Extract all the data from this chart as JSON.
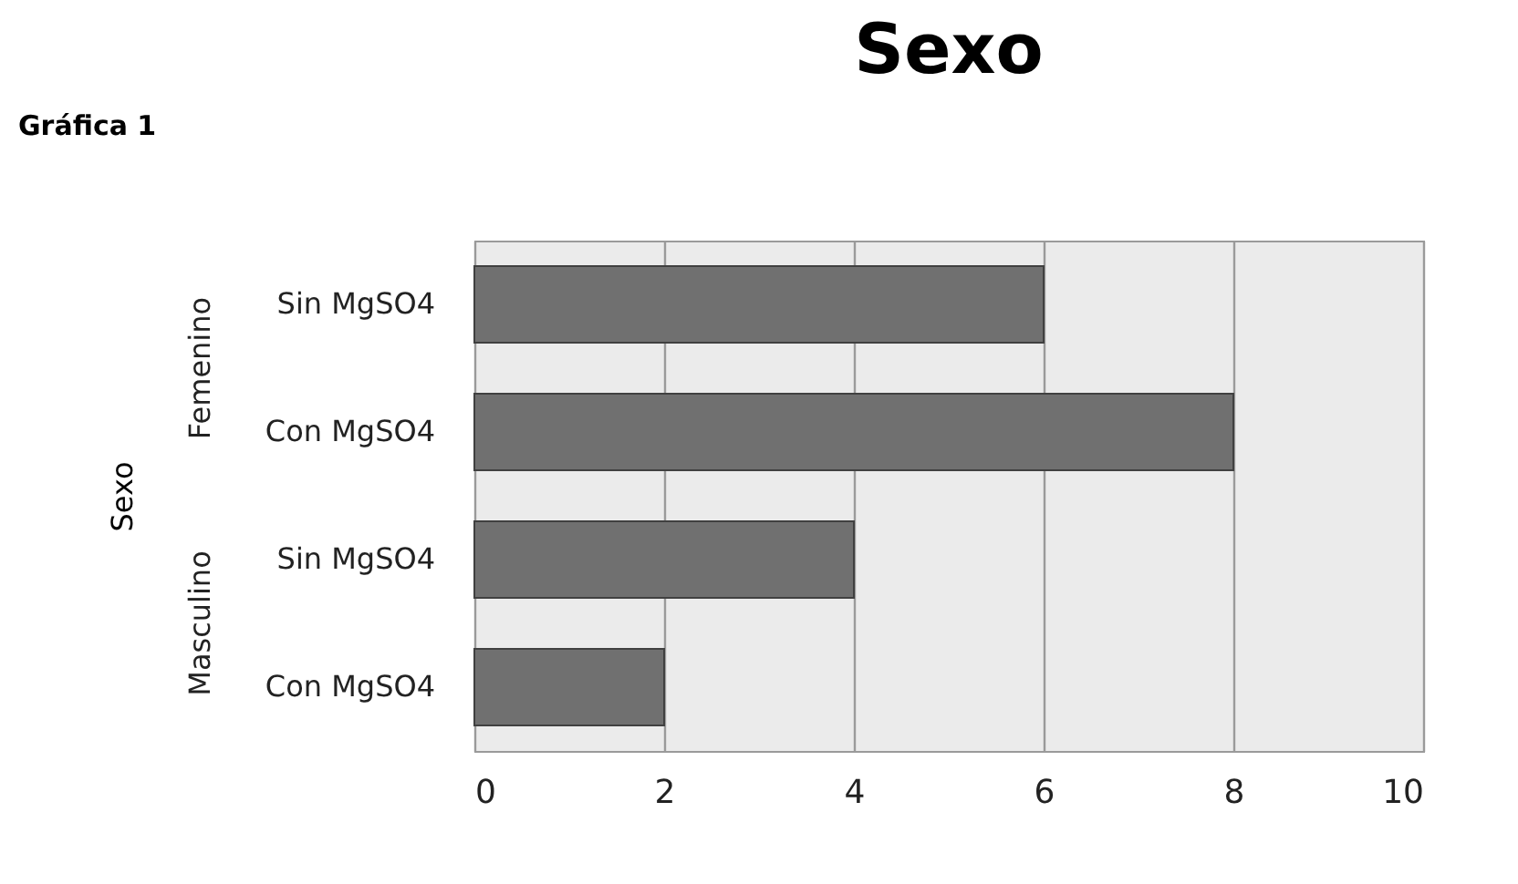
{
  "chart_data": {
    "type": "bar",
    "orientation": "horizontal",
    "title": "Sexo",
    "ylabel": "Sexo",
    "categories": [
      "Sin MgSO4",
      "Con MgSO4",
      "Sin MgSO4",
      "Con MgSO4"
    ],
    "values": [
      6,
      8,
      4,
      2
    ],
    "color": "#707070",
    "xlim": [
      0,
      10
    ],
    "xticks": [
      0,
      2,
      4,
      6,
      8,
      10
    ],
    "grid": "x",
    "annotations": [
      "Gráfica 1",
      "Femenino",
      "Masculino"
    ]
  }
}
